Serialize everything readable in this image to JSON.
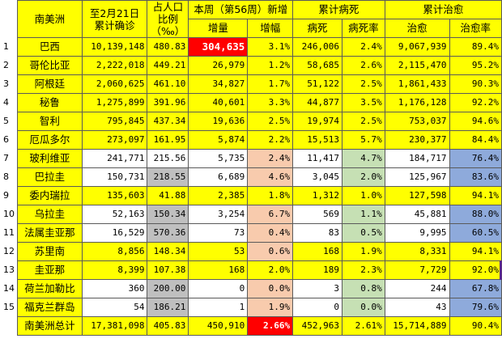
{
  "header": {
    "region": "南美洲",
    "cum_confirmed": "至2月21日累计确诊",
    "per_mille": "占人口比例（‰）",
    "week": "本周（第56周）新增",
    "week_inc": "增量",
    "week_rate": "增幅",
    "deaths": "累计病死",
    "deaths_n": "病死",
    "deaths_rate": "病死率",
    "cured": "累计治愈",
    "cured_n": "治愈",
    "cured_rate": "治愈率"
  },
  "rows": [
    {
      "i": "1",
      "name": "巴西",
      "confirmed": "10,139,148",
      "pm": "480.83",
      "inc": "304,635",
      "incr": "3.1%",
      "deaths": "246,006",
      "dr": "2.4%",
      "cured": "9,067,939",
      "cr": "89.4%"
    },
    {
      "i": "2",
      "name": "哥伦比亚",
      "confirmed": "2,222,018",
      "pm": "449.21",
      "inc": "26,979",
      "incr": "1.2%",
      "deaths": "58,685",
      "dr": "2.6%",
      "cured": "2,115,470",
      "cr": "95.2%"
    },
    {
      "i": "3",
      "name": "阿根廷",
      "confirmed": "2,060,625",
      "pm": "461.10",
      "inc": "34,827",
      "incr": "1.7%",
      "deaths": "51,122",
      "dr": "2.5%",
      "cured": "1,861,433",
      "cr": "90.3%"
    },
    {
      "i": "4",
      "name": "秘鲁",
      "confirmed": "1,275,899",
      "pm": "391.96",
      "inc": "40,601",
      "incr": "3.3%",
      "deaths": "44,877",
      "dr": "3.5%",
      "cured": "1,176,128",
      "cr": "92.2%"
    },
    {
      "i": "5",
      "name": "智利",
      "confirmed": "795,845",
      "pm": "437.34",
      "inc": "19,636",
      "incr": "2.5%",
      "deaths": "19,974",
      "dr": "2.5%",
      "cured": "753,037",
      "cr": "94.6%"
    },
    {
      "i": "6",
      "name": "厄瓜多尔",
      "confirmed": "273,097",
      "pm": "161.95",
      "inc": "5,874",
      "incr": "2.2%",
      "deaths": "15,513",
      "dr": "5.7%",
      "cured": "230,377",
      "cr": "84.4%"
    },
    {
      "i": "7",
      "name": "玻利维亚",
      "confirmed": "241,771",
      "pm": "215.56",
      "inc": "5,735",
      "incr": "2.4%",
      "deaths": "11,417",
      "dr": "4.7%",
      "cured": "184,717",
      "cr": "76.4%"
    },
    {
      "i": "8",
      "name": "巴拉圭",
      "confirmed": "150,731",
      "pm": "218.55",
      "inc": "6,689",
      "incr": "4.6%",
      "deaths": "3,045",
      "dr": "2.0%",
      "cured": "125,967",
      "cr": "83.6%"
    },
    {
      "i": "9",
      "name": "委内瑞拉",
      "confirmed": "135,603",
      "pm": "41.88",
      "inc": "2,385",
      "incr": "1.8%",
      "deaths": "1,312",
      "dr": "1.0%",
      "cured": "127,598",
      "cr": "94.1%"
    },
    {
      "i": "10",
      "name": "乌拉圭",
      "confirmed": "52,163",
      "pm": "150.34",
      "inc": "3,254",
      "incr": "6.7%",
      "deaths": "569",
      "dr": "1.1%",
      "cured": "45,881",
      "cr": "88.0%"
    },
    {
      "i": "11",
      "name": "法属圭亚那",
      "confirmed": "16,529",
      "pm": "570.36",
      "inc": "73",
      "incr": "0.4%",
      "deaths": "83",
      "dr": "0.5%",
      "cured": "9,995",
      "cr": "60.5%"
    },
    {
      "i": "12",
      "name": "苏里南",
      "confirmed": "8,856",
      "pm": "148.34",
      "inc": "53",
      "incr": "0.6%",
      "deaths": "168",
      "dr": "1.9%",
      "cured": "8,331",
      "cr": "94.1%"
    },
    {
      "i": "13",
      "name": "圭亚那",
      "confirmed": "8,399",
      "pm": "107.38",
      "inc": "168",
      "incr": "2.0%",
      "deaths": "189",
      "dr": "2.3%",
      "cured": "7,729",
      "cr": "92.0%"
    },
    {
      "i": "14",
      "name": "荷兰加勒比",
      "confirmed": "360",
      "pm": "200.00",
      "inc": "0",
      "incr": "0.0%",
      "deaths": "3",
      "dr": "0.8%",
      "cured": "244",
      "cr": "67.8%"
    },
    {
      "i": "15",
      "name": "福克兰群岛",
      "confirmed": "54",
      "pm": "186.21",
      "inc": "1",
      "incr": "1.9%",
      "deaths": "0",
      "dr": "0.0%",
      "cured": "43",
      "cr": "79.6%"
    }
  ],
  "total": {
    "name": "南美洲总计",
    "confirmed": "17,381,098",
    "pm": "405.83",
    "inc": "450,910",
    "incr": "2.66%",
    "deaths": "452,963",
    "dr": "2.61%",
    "cured": "15,714,889",
    "cr": "90.4%"
  },
  "colors": {
    "yellow": "#ffff00",
    "peach": "#f8cbad",
    "green": "#c6e0b4",
    "blue": "#8eaadb",
    "gray": "#bfbfbf",
    "red": "#ff0000"
  }
}
